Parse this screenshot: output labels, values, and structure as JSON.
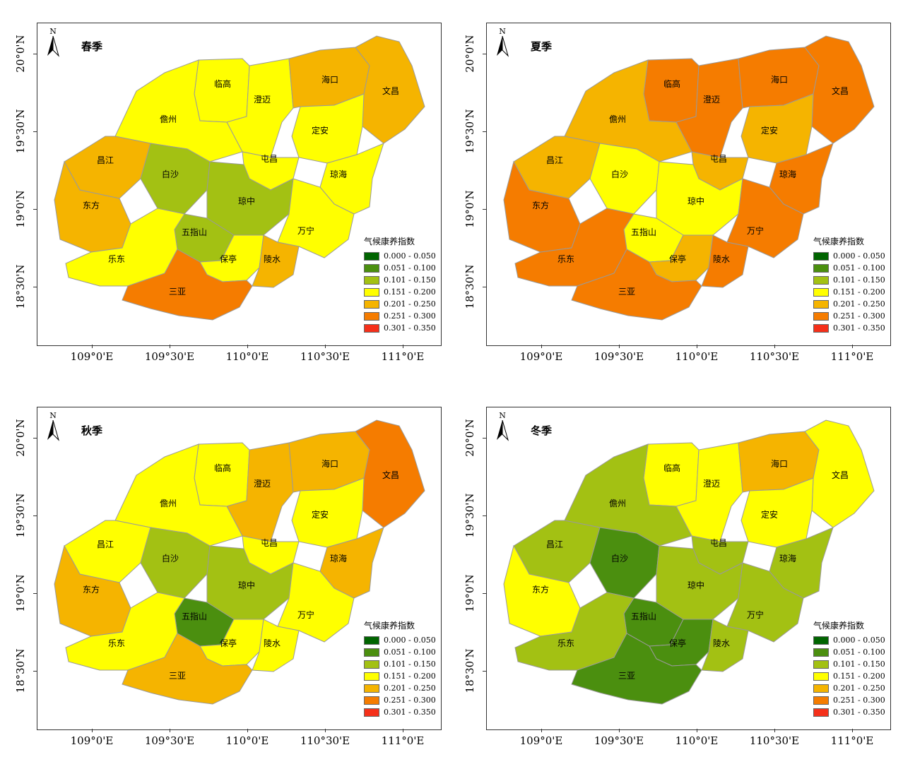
{
  "legend": {
    "title": "气候康养指数",
    "classes": [
      {
        "label": "0.000 - 0.050",
        "color": "#006400"
      },
      {
        "label": "0.051 - 0.100",
        "color": "#4b8f0f"
      },
      {
        "label": "0.101 - 0.150",
        "color": "#a3c113"
      },
      {
        "label": "0.151 - 0.200",
        "color": "#ffff00"
      },
      {
        "label": "0.201 - 0.250",
        "color": "#f5b400"
      },
      {
        "label": "0.251 - 0.300",
        "color": "#f57c00"
      },
      {
        "label": "0.301 - 0.350",
        "color": "#f5301a"
      }
    ]
  },
  "north_label": "N",
  "lat_labels": [
    "20°0'N",
    "19°30'N",
    "19°0'N",
    "18°30'N"
  ],
  "lon_labels": [
    "109°0'E",
    "109°30'E",
    "110°0'E",
    "110°30'E",
    "111°0'E"
  ],
  "counties": [
    "临高",
    "澄迈",
    "海口",
    "文昌",
    "儋州",
    "定安",
    "昌江",
    "白沙",
    "屯昌",
    "琼海",
    "东方",
    "琼中",
    "五指山",
    "万宁",
    "乐东",
    "保亭",
    "陵水",
    "三亚"
  ],
  "panels": [
    {
      "season": "春季",
      "classes": {
        "临高": 3,
        "澄迈": 3,
        "海口": 4,
        "文昌": 4,
        "儋州": 3,
        "定安": 3,
        "昌江": 4,
        "白沙": 2,
        "屯昌": 3,
        "琼海": 3,
        "东方": 4,
        "琼中": 2,
        "五指山": 2,
        "万宁": 3,
        "乐东": 3,
        "保亭": 3,
        "陵水": 4,
        "三亚": 5
      }
    },
    {
      "season": "夏季",
      "classes": {
        "临高": 5,
        "澄迈": 5,
        "海口": 5,
        "文昌": 5,
        "儋州": 4,
        "定安": 4,
        "昌江": 4,
        "白沙": 3,
        "屯昌": 4,
        "琼海": 5,
        "东方": 5,
        "琼中": 3,
        "五指山": 3,
        "万宁": 5,
        "乐东": 5,
        "保亭": 4,
        "陵水": 5,
        "三亚": 5
      }
    },
    {
      "season": "秋季",
      "classes": {
        "临高": 3,
        "澄迈": 4,
        "海口": 4,
        "文昌": 5,
        "儋州": 3,
        "定安": 3,
        "昌江": 3,
        "白沙": 2,
        "屯昌": 3,
        "琼海": 4,
        "东方": 4,
        "琼中": 2,
        "五指山": 1,
        "万宁": 3,
        "乐东": 3,
        "保亭": 3,
        "陵水": 3,
        "三亚": 4
      }
    },
    {
      "season": "冬季",
      "classes": {
        "临高": 3,
        "澄迈": 3,
        "海口": 4,
        "文昌": 3,
        "儋州": 2,
        "定安": 3,
        "昌江": 2,
        "白沙": 1,
        "屯昌": 2,
        "琼海": 2,
        "东方": 3,
        "琼中": 2,
        "五指山": 1,
        "万宁": 2,
        "乐东": 2,
        "保亭": 1,
        "陵水": 2,
        "三亚": 1
      }
    }
  ]
}
